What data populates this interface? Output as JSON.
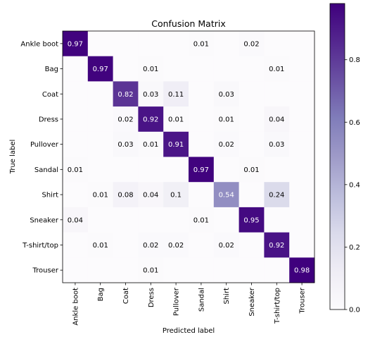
{
  "chart_data": {
    "type": "heatmap",
    "title": "Confusion Matrix",
    "xlabel": "Predicted label",
    "ylabel": "True label",
    "x_categories": [
      "Ankle boot",
      "Bag",
      "Coat",
      "Dress",
      "Pullover",
      "Sandal",
      "Shirt",
      "Sneaker",
      "T-shirt/top",
      "Trouser"
    ],
    "y_categories": [
      "Ankle boot",
      "Bag",
      "Coat",
      "Dress",
      "Pullover",
      "Sandal",
      "Shirt",
      "Sneaker",
      "T-shirt/top",
      "Trouser"
    ],
    "values": [
      [
        0.97,
        0,
        0,
        0,
        0,
        0.01,
        0,
        0.02,
        0,
        0
      ],
      [
        0,
        0.97,
        0,
        0.01,
        0,
        0,
        0,
        0,
        0.01,
        0
      ],
      [
        0,
        0,
        0.82,
        0.03,
        0.11,
        0,
        0.03,
        0,
        0,
        0
      ],
      [
        0,
        0,
        0.02,
        0.92,
        0.01,
        0,
        0.01,
        0,
        0.04,
        0
      ],
      [
        0,
        0,
        0.03,
        0.01,
        0.91,
        0,
        0.02,
        0,
        0.03,
        0
      ],
      [
        0.01,
        0,
        0,
        0,
        0,
        0.97,
        0,
        0.01,
        0,
        0
      ],
      [
        0,
        0.01,
        0.08,
        0.04,
        0.1,
        0,
        0.54,
        0,
        0.24,
        0
      ],
      [
        0.04,
        0,
        0,
        0,
        0,
        0.01,
        0,
        0.95,
        0,
        0
      ],
      [
        0,
        0.01,
        0,
        0.02,
        0.02,
        0,
        0.02,
        0,
        0.92,
        0
      ],
      [
        0,
        0,
        0,
        0.01,
        0,
        0,
        0,
        0,
        0,
        0.98
      ]
    ],
    "cell_labels": [
      [
        "0.97",
        "",
        "",
        "",
        "",
        "0.01",
        "",
        "0.02",
        "",
        ""
      ],
      [
        "",
        "0.97",
        "",
        "0.01",
        "",
        "",
        "",
        "",
        "0.01",
        ""
      ],
      [
        "",
        "",
        "0.82",
        "0.03",
        "0.11",
        "",
        "0.03",
        "",
        "",
        ""
      ],
      [
        "",
        "",
        "0.02",
        "0.92",
        "0.01",
        "",
        "0.01",
        "",
        "0.04",
        ""
      ],
      [
        "",
        "",
        "0.03",
        "0.01",
        "0.91",
        "",
        "0.02",
        "",
        "0.03",
        ""
      ],
      [
        "0.01",
        "",
        "",
        "",
        "",
        "0.97",
        "",
        "0.01",
        "",
        ""
      ],
      [
        "",
        "0.01",
        "0.08",
        "0.04",
        "0.1",
        "",
        "0.54",
        "",
        "0.24",
        ""
      ],
      [
        "0.04",
        "",
        "",
        "",
        "",
        "0.01",
        "",
        "0.95",
        "",
        ""
      ],
      [
        "",
        "0.01",
        "",
        "0.02",
        "0.02",
        "",
        "0.02",
        "",
        "0.92",
        ""
      ],
      [
        "",
        "",
        "",
        "0.01",
        "",
        "",
        "",
        "",
        "",
        "0.98"
      ]
    ],
    "colorbar": {
      "range": [
        0,
        0.98
      ],
      "ticks": [
        0.0,
        0.2,
        0.4,
        0.6,
        0.8
      ],
      "tick_labels": [
        "0.0",
        "0.2",
        "0.4",
        "0.6",
        "0.8"
      ]
    },
    "colormap": [
      "#fcfbfd",
      "#efedf5",
      "#dadaeb",
      "#bcbddc",
      "#9e9ac8",
      "#807dba",
      "#6a51a3",
      "#54278f",
      "#3f007d"
    ],
    "text_color_dark": "#000000",
    "text_color_light": "#ffffff",
    "grid": false
  }
}
